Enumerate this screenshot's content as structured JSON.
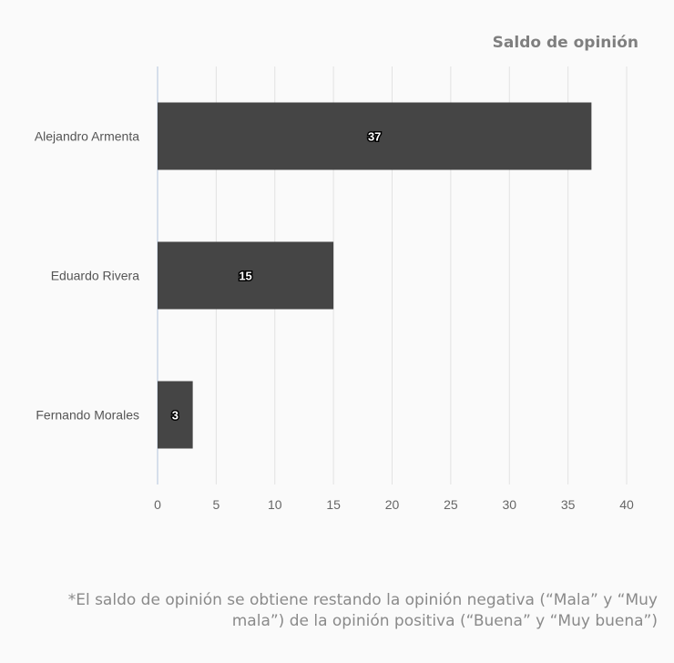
{
  "chart_data": {
    "type": "bar",
    "orientation": "horizontal",
    "title": "Saldo de opinión",
    "categories": [
      "Alejandro Armenta",
      "Eduardo Rivera",
      "Fernando Morales"
    ],
    "values": [
      37,
      15,
      3
    ],
    "data_labels": [
      "37",
      "15",
      "3"
    ],
    "xlim": [
      0,
      40
    ],
    "xticks": [
      0,
      5,
      10,
      15,
      20,
      25,
      30,
      35,
      40
    ],
    "grid": "vertical",
    "legend": "none",
    "bar_color": "#454545"
  },
  "footnote": "*El saldo de opinión se obtiene restando la opinión negativa (“Mala” y “Muy mala”) de la opinión positiva (“Buena” y “Muy buena”)"
}
